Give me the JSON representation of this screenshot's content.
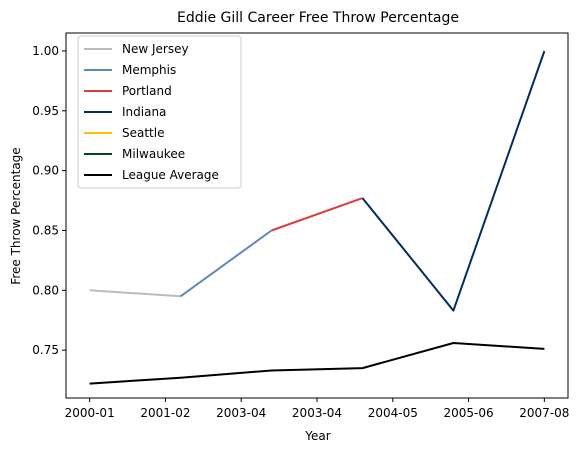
{
  "chart_data": {
    "type": "line",
    "title": "Eddie Gill Career Free Throw Percentage",
    "xlabel": "Year",
    "ylabel": "Free Throw Percentage",
    "x_ticks": [
      "2000-01",
      "2001-02",
      "2003-04",
      "2003-04",
      "2004-05",
      "2005-06",
      "2007-08"
    ],
    "ylim": [
      0.71,
      1.015
    ],
    "y_ticks": [
      "0.75",
      "0.80",
      "0.85",
      "0.90",
      "0.95",
      "1.00"
    ],
    "grid": false,
    "legend_position": "upper-left",
    "series": [
      {
        "name": "New Jersey",
        "color": "#BBBBBB",
        "x": [
          0.0,
          1.0
        ],
        "y": [
          0.8,
          0.795
        ]
      },
      {
        "name": "Memphis",
        "color": "#5D88BB",
        "x": [
          1.0,
          2.0
        ],
        "y": [
          0.795,
          0.85
        ]
      },
      {
        "name": "Portland",
        "color": "#E03A3E",
        "x": [
          2.0,
          3.0
        ],
        "y": [
          0.85,
          0.877
        ]
      },
      {
        "name": "Indiana",
        "color": "#002D62",
        "x": [
          3.0,
          4.0,
          5.0
        ],
        "y": [
          0.877,
          0.783,
          1.0
        ]
      },
      {
        "name": "Seattle",
        "color": "#FFC200",
        "x": [],
        "y": []
      },
      {
        "name": "Milwaukee",
        "color": "#00471B",
        "x": [],
        "y": []
      },
      {
        "name": "League Average",
        "color": "#000000",
        "x": [
          0.0,
          1.0,
          2.0,
          3.0,
          4.0,
          5.0
        ],
        "y": [
          0.722,
          0.727,
          0.733,
          0.735,
          0.756,
          0.751
        ]
      }
    ]
  }
}
